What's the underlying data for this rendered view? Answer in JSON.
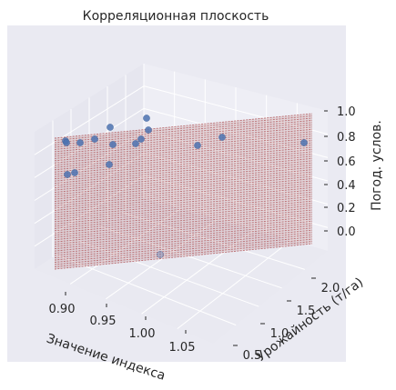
{
  "chart_data": {
    "type": "scatter3d",
    "title": "Корреляционная плоскость",
    "xlabel": "Значение индекса",
    "ylabel": "Урожайность (т/га)",
    "zlabel": "Погод. услов.",
    "x_ticks": [
      "0.90",
      "0.95",
      "1.00",
      "1.05"
    ],
    "y_ticks": [
      "0.5",
      "1.0",
      "1.5",
      "2.0"
    ],
    "z_ticks": [
      "0.0",
      "0.2",
      "0.4",
      "0.6",
      "0.8",
      "1.0"
    ],
    "grid": true,
    "surface": "plane",
    "colors": {
      "background": "#eaeaf2",
      "pane_left": "#e6e6ef",
      "pane_right": "#eeeef5",
      "floor": "#e9e9f1",
      "grid": "#ffffff",
      "points": "#4c72b0",
      "plane_lines": "#b2575b"
    }
  }
}
